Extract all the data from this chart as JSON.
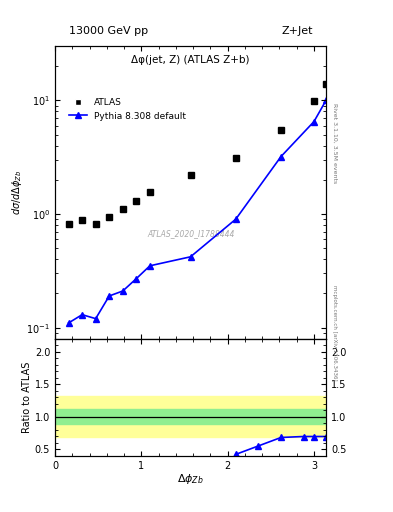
{
  "title_left": "13000 GeV pp",
  "title_right": "Z+Jet",
  "plot_title": "Δφ(jet, Z) (ATLAS Z+b)",
  "ylabel_main": "dσ/dΔφ_{Zb}",
  "ylabel_ratio": "Ratio to ATLAS",
  "xlabel": "Δφ_{Zb}",
  "rivet_label": "Rivet 3.1.10, 3.5M events",
  "mcplots_label": "mcplots.cern.ch [arXiv:1306.3436]",
  "watermark": "ATLAS_2020_I1788444",
  "atlas_x": [
    0.157,
    0.314,
    0.471,
    0.628,
    0.785,
    0.942,
    1.099,
    1.57,
    2.094,
    2.618,
    3.0,
    3.14
  ],
  "atlas_y": [
    0.82,
    0.88,
    0.82,
    0.95,
    1.1,
    1.3,
    1.55,
    2.2,
    3.1,
    5.5,
    9.8,
    14.0
  ],
  "pythia_x": [
    0.157,
    0.314,
    0.471,
    0.628,
    0.785,
    0.942,
    1.099,
    1.57,
    2.094,
    2.618,
    3.0,
    3.14
  ],
  "pythia_y": [
    0.11,
    0.13,
    0.12,
    0.19,
    0.21,
    0.27,
    0.35,
    0.42,
    0.9,
    3.2,
    6.5,
    10.0
  ],
  "ratio_x": [
    2.094,
    2.356,
    2.618,
    2.88,
    3.0,
    3.14
  ],
  "ratio_y": [
    0.42,
    0.55,
    0.68,
    0.695,
    0.695,
    0.695
  ],
  "green_band_lower": 0.88,
  "green_band_upper": 1.12,
  "yellow_band_lower": 0.68,
  "yellow_band_upper": 1.32,
  "main_ylim": [
    0.08,
    30.0
  ],
  "ratio_ylim": [
    0.4,
    2.2
  ],
  "xlim": [
    0.0,
    3.14159
  ],
  "atlas_color": "black",
  "pythia_color": "blue",
  "green_color": "#90EE90",
  "yellow_color": "#FFFF99",
  "legend_atlas": "ATLAS",
  "legend_pythia": "Pythia 8.308 default"
}
